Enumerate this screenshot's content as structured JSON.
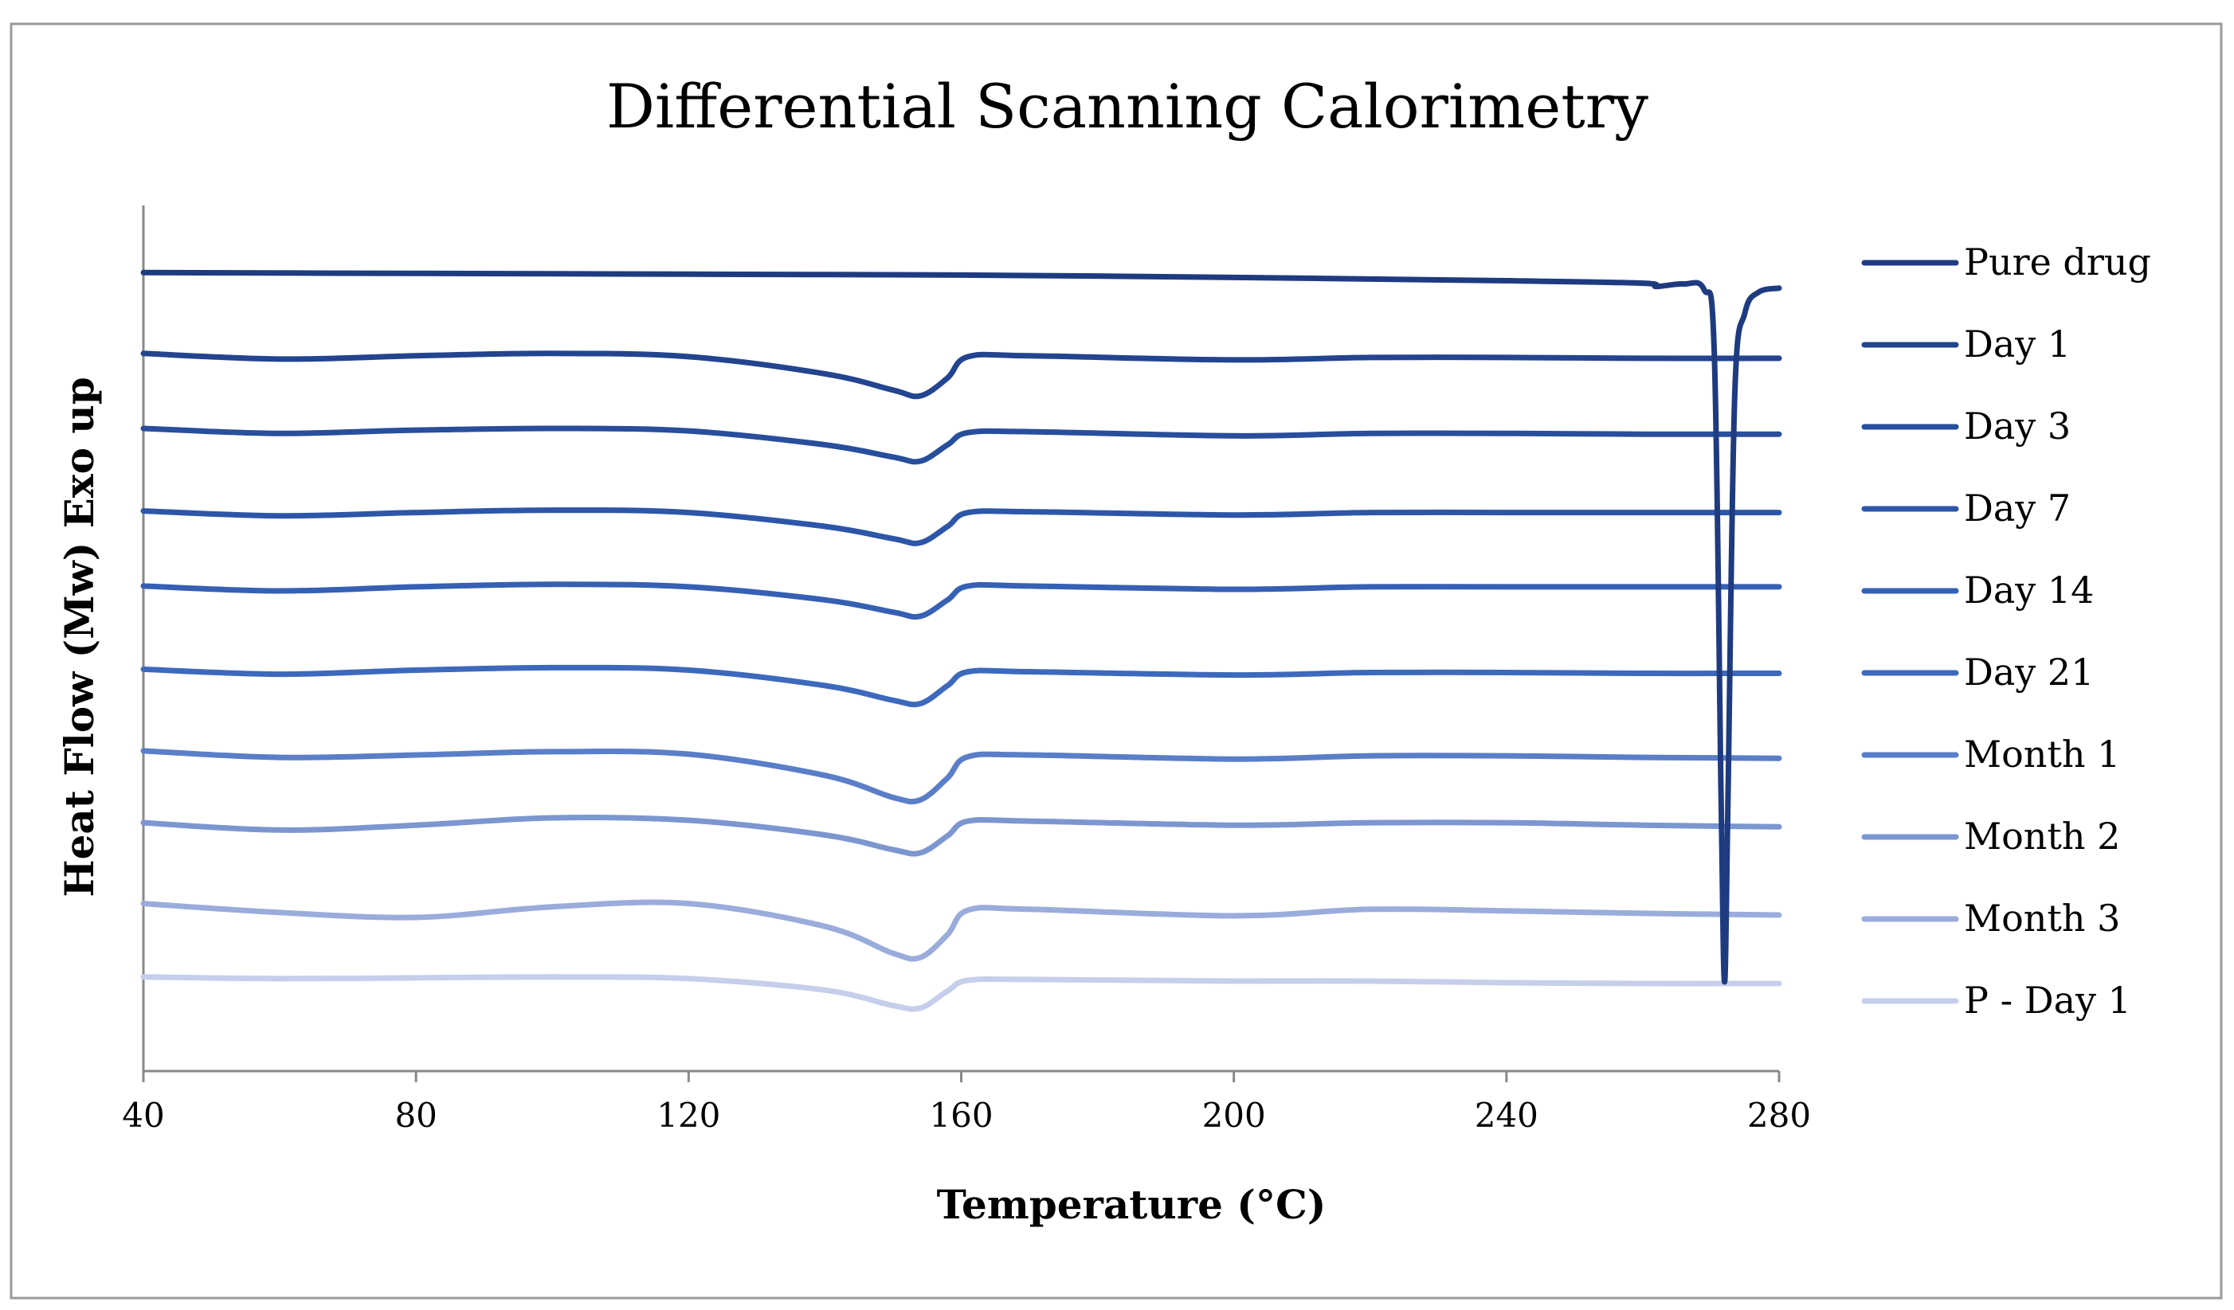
{
  "chart_data": {
    "type": "line",
    "title": "Differential Scanning Calorimetry",
    "xlabel": "Temperature (°C)",
    "ylabel": "Heat Flow (Mw)  Exo up",
    "xlim": [
      40,
      280
    ],
    "x_ticks": [
      "40",
      "80",
      "120",
      "160",
      "200",
      "240",
      "280"
    ],
    "ylim": [
      0,
      100
    ],
    "grid": false,
    "legend_position": "right",
    "series": [
      {
        "name": "Pure drug",
        "color": "#1f3b80",
        "x": [
          40,
          80,
          120,
          160,
          200,
          240,
          260,
          262,
          266,
          269,
          270.5,
          271.5,
          272,
          272.5,
          273.5,
          275,
          277,
          280
        ],
        "y": [
          94.9,
          94.8,
          94.7,
          94.6,
          94.3,
          93.9,
          93.6,
          93.2,
          93.5,
          92.8,
          85,
          30,
          8,
          30,
          80,
          90,
          92.5,
          93
        ]
      },
      {
        "name": "Day 1",
        "color": "#23448f",
        "x": [
          40,
          60,
          80,
          100,
          120,
          140,
          150,
          154,
          158,
          161,
          170,
          200,
          220,
          240,
          260,
          280
        ],
        "y": [
          85,
          84.3,
          84.7,
          85,
          84.6,
          82.5,
          80.5,
          79.8,
          82,
          84.6,
          84.7,
          84.2,
          84.5,
          84.5,
          84.4,
          84.4
        ]
      },
      {
        "name": "Day 3",
        "color": "#284e9c",
        "x": [
          40,
          60,
          80,
          100,
          120,
          140,
          150,
          154,
          158,
          161,
          170,
          200,
          220,
          240,
          260,
          280
        ],
        "y": [
          75.8,
          75.2,
          75.6,
          75.8,
          75.5,
          73.8,
          72.3,
          71.8,
          73.8,
          75.3,
          75.4,
          74.9,
          75.2,
          75.2,
          75.1,
          75.1
        ]
      },
      {
        "name": "Day 7",
        "color": "#2d56a8",
        "x": [
          40,
          60,
          80,
          100,
          120,
          140,
          150,
          154,
          158,
          161,
          170,
          200,
          220,
          240,
          260,
          280
        ],
        "y": [
          65.7,
          65.1,
          65.5,
          65.8,
          65.5,
          63.8,
          62.3,
          61.8,
          63.8,
          65.5,
          65.6,
          65.2,
          65.5,
          65.5,
          65.5,
          65.5
        ]
      },
      {
        "name": "Day 14",
        "color": "#3560b4",
        "x": [
          40,
          60,
          80,
          100,
          120,
          140,
          150,
          154,
          158,
          161,
          170,
          200,
          220,
          240,
          260,
          280
        ],
        "y": [
          56.5,
          55.9,
          56.4,
          56.7,
          56.4,
          54.8,
          53.3,
          52.8,
          54.8,
          56.5,
          56.5,
          56.1,
          56.4,
          56.4,
          56.4,
          56.4
        ]
      },
      {
        "name": "Day 21",
        "color": "#3d69bd",
        "x": [
          40,
          60,
          80,
          100,
          120,
          140,
          150,
          154,
          158,
          161,
          170,
          200,
          220,
          240,
          260,
          280
        ],
        "y": [
          46.3,
          45.7,
          46.2,
          46.5,
          46.2,
          44.3,
          42.5,
          42.1,
          44.3,
          46,
          46,
          45.6,
          45.9,
          45.9,
          45.8,
          45.8
        ]
      },
      {
        "name": "Month 1",
        "color": "#5a7ec8",
        "x": [
          40,
          60,
          80,
          100,
          120,
          140,
          150,
          154,
          158,
          161,
          170,
          200,
          220,
          240,
          260,
          280
        ],
        "y": [
          36.3,
          35.5,
          35.8,
          36.2,
          35.9,
          33.3,
          30.6,
          30.3,
          33,
          35.6,
          35.8,
          35.3,
          35.7,
          35.7,
          35.5,
          35.4
        ]
      },
      {
        "name": "Month 2",
        "color": "#7c96d0",
        "x": [
          40,
          60,
          80,
          100,
          120,
          140,
          150,
          154,
          158,
          161,
          170,
          200,
          220,
          240,
          260,
          280
        ],
        "y": [
          27.5,
          26.6,
          27.2,
          28.1,
          27.8,
          26,
          24.2,
          23.8,
          25.9,
          27.7,
          27.7,
          27.2,
          27.5,
          27.5,
          27.2,
          27
        ]
      },
      {
        "name": "Month 3",
        "color": "#9aacdb",
        "x": [
          40,
          60,
          80,
          100,
          120,
          140,
          150,
          154,
          158,
          161,
          170,
          200,
          220,
          240,
          260,
          280
        ],
        "y": [
          17.6,
          16.5,
          15.9,
          17.2,
          17.6,
          14.8,
          11.5,
          11,
          13.8,
          16.8,
          16.9,
          16.1,
          16.9,
          16.7,
          16.4,
          16.2
        ]
      },
      {
        "name": "P - Day 1",
        "color": "#c5cfec",
        "x": [
          40,
          60,
          80,
          100,
          120,
          140,
          150,
          154,
          158,
          161,
          170,
          200,
          220,
          240,
          260,
          280
        ],
        "y": [
          8.6,
          8.4,
          8.5,
          8.6,
          8.4,
          7,
          5.1,
          4.8,
          6.9,
          8.2,
          8.3,
          8.1,
          8.1,
          7.9,
          7.8,
          7.8
        ]
      }
    ]
  }
}
